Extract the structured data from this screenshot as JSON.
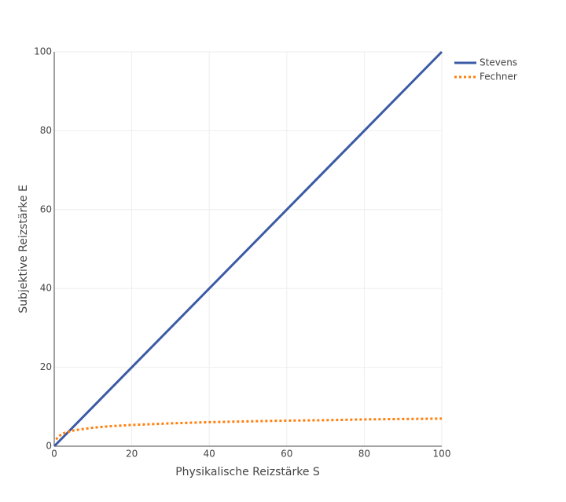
{
  "chart_data": {
    "type": "line",
    "xlabel": "Physikalische Reizstärke S",
    "ylabel": "Subjektive Reizstärke E",
    "xlim": [
      0,
      100
    ],
    "ylim": [
      0,
      100
    ],
    "xticks": [
      0,
      20,
      40,
      60,
      80,
      100
    ],
    "yticks": [
      0,
      20,
      40,
      60,
      80,
      100
    ],
    "grid": true,
    "legend": "top-right",
    "series": [
      {
        "name": "Stevens",
        "color": "#3b5ba5",
        "dash": "solid",
        "x": [
          0,
          100
        ],
        "values": [
          0,
          100
        ]
      },
      {
        "name": "Fechner",
        "color": "#ff7f0e",
        "dash": "dot",
        "x": [
          0.5,
          1,
          2,
          3,
          5,
          7,
          10,
          15,
          20,
          30,
          40,
          50,
          60,
          70,
          80,
          90,
          100
        ],
        "values": [
          1.7,
          2.4,
          3.1,
          3.5,
          4.0,
          4.3,
          4.7,
          5.1,
          5.4,
          5.8,
          6.1,
          6.3,
          6.5,
          6.6,
          6.8,
          6.9,
          7.0
        ]
      }
    ]
  }
}
